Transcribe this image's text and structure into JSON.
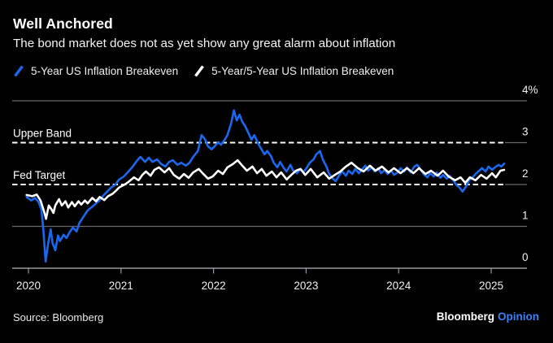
{
  "header": {
    "title": "Well Anchored",
    "subtitle": "The bond market does not as yet show any great alarm about inflation"
  },
  "legend": [
    {
      "label": "5-Year US Inflation Breakeven",
      "color": "#1a68f0"
    },
    {
      "label": "5-Year/5-Year US Inflation Breakeven",
      "color": "#ffffff"
    }
  ],
  "footer": {
    "source": "Source: Bloomberg",
    "brand": "Bloomberg",
    "brand_suffix": "Opinion",
    "brand_suffix_color": "#3e80f6"
  },
  "chart_data": {
    "type": "line",
    "title": "Well Anchored",
    "x_axis": {
      "ticks": [
        "2020",
        "2021",
        "2022",
        "2023",
        "2024",
        "2025"
      ],
      "range_years_from_2020": [
        -0.02,
        5.14
      ],
      "grid": false
    },
    "y_axis": {
      "unit": "%",
      "range": [
        0,
        4
      ],
      "ticks": [
        {
          "value": 4,
          "label": "4%"
        },
        {
          "value": 3,
          "label": "3"
        },
        {
          "value": 2,
          "label": "2"
        },
        {
          "value": 1,
          "label": "1"
        },
        {
          "value": 0,
          "label": "0"
        }
      ]
    },
    "annotations": [
      {
        "label": "Upper Band",
        "value": 3
      },
      {
        "label": "Fed Target",
        "value": 2
      }
    ],
    "legend_position": "top",
    "style": {
      "grid_color": "#67696c",
      "axis_color": "#97999c",
      "dashed_color": "#ffffff",
      "label_color": "#f0f0f0"
    },
    "series": [
      {
        "name": "5-Year US Inflation Breakeven",
        "color": "#1a68f0",
        "points": [
          [
            -0.02,
            1.7
          ],
          [
            0.03,
            1.62
          ],
          [
            0.07,
            1.68
          ],
          [
            0.11,
            1.58
          ],
          [
            0.14,
            1.4
          ],
          [
            0.16,
            0.95
          ],
          [
            0.185,
            0.16
          ],
          [
            0.21,
            0.55
          ],
          [
            0.24,
            0.93
          ],
          [
            0.26,
            0.6
          ],
          [
            0.29,
            0.43
          ],
          [
            0.32,
            0.78
          ],
          [
            0.34,
            0.65
          ],
          [
            0.38,
            0.8
          ],
          [
            0.41,
            0.72
          ],
          [
            0.45,
            0.88
          ],
          [
            0.48,
            0.97
          ],
          [
            0.52,
            0.88
          ],
          [
            0.55,
            1.08
          ],
          [
            0.6,
            1.25
          ],
          [
            0.64,
            1.38
          ],
          [
            0.69,
            1.47
          ],
          [
            0.73,
            1.55
          ],
          [
            0.77,
            1.63
          ],
          [
            0.81,
            1.74
          ],
          [
            0.85,
            1.83
          ],
          [
            0.89,
            1.92
          ],
          [
            0.94,
            2.0
          ],
          [
            0.98,
            2.12
          ],
          [
            1.03,
            2.19
          ],
          [
            1.08,
            2.31
          ],
          [
            1.12,
            2.41
          ],
          [
            1.17,
            2.56
          ],
          [
            1.21,
            2.66
          ],
          [
            1.26,
            2.54
          ],
          [
            1.3,
            2.64
          ],
          [
            1.34,
            2.54
          ],
          [
            1.39,
            2.6
          ],
          [
            1.43,
            2.5
          ],
          [
            1.48,
            2.43
          ],
          [
            1.52,
            2.54
          ],
          [
            1.56,
            2.58
          ],
          [
            1.61,
            2.47
          ],
          [
            1.65,
            2.52
          ],
          [
            1.7,
            2.45
          ],
          [
            1.74,
            2.52
          ],
          [
            1.78,
            2.66
          ],
          [
            1.83,
            2.8
          ],
          [
            1.87,
            3.18
          ],
          [
            1.91,
            3.07
          ],
          [
            1.94,
            2.91
          ],
          [
            1.98,
            2.84
          ],
          [
            2.01,
            2.91
          ],
          [
            2.05,
            3.01
          ],
          [
            2.08,
            2.95
          ],
          [
            2.12,
            3.07
          ],
          [
            2.15,
            3.18
          ],
          [
            2.19,
            3.46
          ],
          [
            2.22,
            3.77
          ],
          [
            2.25,
            3.53
          ],
          [
            2.28,
            3.67
          ],
          [
            2.31,
            3.5
          ],
          [
            2.34,
            3.4
          ],
          [
            2.37,
            3.26
          ],
          [
            2.41,
            3.07
          ],
          [
            2.44,
            3.18
          ],
          [
            2.48,
            2.99
          ],
          [
            2.51,
            2.87
          ],
          [
            2.55,
            2.72
          ],
          [
            2.58,
            2.8
          ],
          [
            2.62,
            2.68
          ],
          [
            2.65,
            2.52
          ],
          [
            2.69,
            2.41
          ],
          [
            2.72,
            2.54
          ],
          [
            2.76,
            2.39
          ],
          [
            2.79,
            2.31
          ],
          [
            2.83,
            2.47
          ],
          [
            2.86,
            2.33
          ],
          [
            2.9,
            2.27
          ],
          [
            2.94,
            2.37
          ],
          [
            2.97,
            2.29
          ],
          [
            3.01,
            2.41
          ],
          [
            3.04,
            2.52
          ],
          [
            3.08,
            2.6
          ],
          [
            3.11,
            2.72
          ],
          [
            3.15,
            2.8
          ],
          [
            3.18,
            2.6
          ],
          [
            3.22,
            2.43
          ],
          [
            3.25,
            2.25
          ],
          [
            3.29,
            2.14
          ],
          [
            3.32,
            2.08
          ],
          [
            3.36,
            2.23
          ],
          [
            3.39,
            2.31
          ],
          [
            3.43,
            2.21
          ],
          [
            3.46,
            2.33
          ],
          [
            3.5,
            2.25
          ],
          [
            3.53,
            2.37
          ],
          [
            3.57,
            2.27
          ],
          [
            3.6,
            2.35
          ],
          [
            3.64,
            2.45
          ],
          [
            3.67,
            2.33
          ],
          [
            3.71,
            2.41
          ],
          [
            3.74,
            2.31
          ],
          [
            3.78,
            2.39
          ],
          [
            3.81,
            2.27
          ],
          [
            3.85,
            2.35
          ],
          [
            3.88,
            2.25
          ],
          [
            3.92,
            2.33
          ],
          [
            3.95,
            2.23
          ],
          [
            3.99,
            2.29
          ],
          [
            4.02,
            2.39
          ],
          [
            4.06,
            2.31
          ],
          [
            4.09,
            2.41
          ],
          [
            4.13,
            2.29
          ],
          [
            4.17,
            2.43
          ],
          [
            4.2,
            2.47
          ],
          [
            4.24,
            2.35
          ],
          [
            4.27,
            2.25
          ],
          [
            4.31,
            2.17
          ],
          [
            4.34,
            2.27
          ],
          [
            4.38,
            2.19
          ],
          [
            4.41,
            2.29
          ],
          [
            4.45,
            2.16
          ],
          [
            4.48,
            2.23
          ],
          [
            4.52,
            2.14
          ],
          [
            4.55,
            2.21
          ],
          [
            4.59,
            2.1
          ],
          [
            4.62,
            2.0
          ],
          [
            4.66,
            1.92
          ],
          [
            4.69,
            1.83
          ],
          [
            4.73,
            1.96
          ],
          [
            4.76,
            2.1
          ],
          [
            4.8,
            2.17
          ],
          [
            4.83,
            2.25
          ],
          [
            4.87,
            2.33
          ],
          [
            4.9,
            2.39
          ],
          [
            4.94,
            2.31
          ],
          [
            4.97,
            2.43
          ],
          [
            5.01,
            2.35
          ],
          [
            5.04,
            2.41
          ],
          [
            5.08,
            2.47
          ],
          [
            5.11,
            2.43
          ],
          [
            5.14,
            2.5
          ]
        ]
      },
      {
        "name": "5-Year/5-Year US Inflation Breakeven",
        "color": "#ffffff",
        "points": [
          [
            -0.02,
            1.75
          ],
          [
            0.04,
            1.72
          ],
          [
            0.09,
            1.76
          ],
          [
            0.13,
            1.62
          ],
          [
            0.17,
            1.35
          ],
          [
            0.19,
            1.18
          ],
          [
            0.22,
            1.5
          ],
          [
            0.25,
            1.4
          ],
          [
            0.27,
            1.32
          ],
          [
            0.29,
            1.5
          ],
          [
            0.33,
            1.65
          ],
          [
            0.36,
            1.5
          ],
          [
            0.4,
            1.6
          ],
          [
            0.43,
            1.45
          ],
          [
            0.47,
            1.58
          ],
          [
            0.5,
            1.48
          ],
          [
            0.54,
            1.6
          ],
          [
            0.57,
            1.52
          ],
          [
            0.61,
            1.62
          ],
          [
            0.64,
            1.55
          ],
          [
            0.69,
            1.68
          ],
          [
            0.73,
            1.6
          ],
          [
            0.77,
            1.7
          ],
          [
            0.82,
            1.63
          ],
          [
            0.86,
            1.72
          ],
          [
            0.91,
            1.78
          ],
          [
            0.95,
            1.86
          ],
          [
            0.98,
            1.93
          ],
          [
            1.04,
            2.0
          ],
          [
            1.08,
            2.06
          ],
          [
            1.14,
            2.17
          ],
          [
            1.19,
            2.1
          ],
          [
            1.23,
            2.23
          ],
          [
            1.27,
            2.31
          ],
          [
            1.32,
            2.21
          ],
          [
            1.36,
            2.35
          ],
          [
            1.41,
            2.41
          ],
          [
            1.47,
            2.29
          ],
          [
            1.52,
            2.39
          ],
          [
            1.57,
            2.23
          ],
          [
            1.63,
            2.14
          ],
          [
            1.68,
            2.25
          ],
          [
            1.73,
            2.16
          ],
          [
            1.78,
            2.29
          ],
          [
            1.84,
            2.37
          ],
          [
            1.89,
            2.25
          ],
          [
            1.94,
            2.14
          ],
          [
            1.99,
            2.19
          ],
          [
            2.05,
            2.33
          ],
          [
            2.1,
            2.25
          ],
          [
            2.15,
            2.41
          ],
          [
            2.21,
            2.49
          ],
          [
            2.26,
            2.58
          ],
          [
            2.31,
            2.45
          ],
          [
            2.36,
            2.33
          ],
          [
            2.42,
            2.43
          ],
          [
            2.47,
            2.27
          ],
          [
            2.52,
            2.37
          ],
          [
            2.57,
            2.21
          ],
          [
            2.63,
            2.31
          ],
          [
            2.68,
            2.17
          ],
          [
            2.73,
            2.29
          ],
          [
            2.79,
            2.12
          ],
          [
            2.84,
            2.23
          ],
          [
            2.89,
            2.33
          ],
          [
            2.94,
            2.37
          ],
          [
            2.99,
            2.23
          ],
          [
            3.05,
            2.37
          ],
          [
            3.12,
            2.17
          ],
          [
            3.19,
            2.29
          ],
          [
            3.25,
            2.14
          ],
          [
            3.31,
            2.23
          ],
          [
            3.37,
            2.31
          ],
          [
            3.43,
            2.43
          ],
          [
            3.49,
            2.52
          ],
          [
            3.56,
            2.39
          ],
          [
            3.62,
            2.31
          ],
          [
            3.69,
            2.45
          ],
          [
            3.75,
            2.33
          ],
          [
            3.82,
            2.43
          ],
          [
            3.89,
            2.29
          ],
          [
            3.95,
            2.39
          ],
          [
            4.02,
            2.27
          ],
          [
            4.09,
            2.39
          ],
          [
            4.16,
            2.27
          ],
          [
            4.22,
            2.39
          ],
          [
            4.29,
            2.25
          ],
          [
            4.35,
            2.33
          ],
          [
            4.42,
            2.21
          ],
          [
            4.48,
            2.33
          ],
          [
            4.54,
            2.19
          ],
          [
            4.61,
            2.1
          ],
          [
            4.67,
            2.17
          ],
          [
            4.72,
            2.04
          ],
          [
            4.77,
            2.17
          ],
          [
            4.83,
            2.1
          ],
          [
            4.89,
            2.23
          ],
          [
            4.95,
            2.14
          ],
          [
            5.01,
            2.27
          ],
          [
            5.05,
            2.17
          ],
          [
            5.1,
            2.33
          ],
          [
            5.14,
            2.35
          ]
        ]
      }
    ]
  }
}
